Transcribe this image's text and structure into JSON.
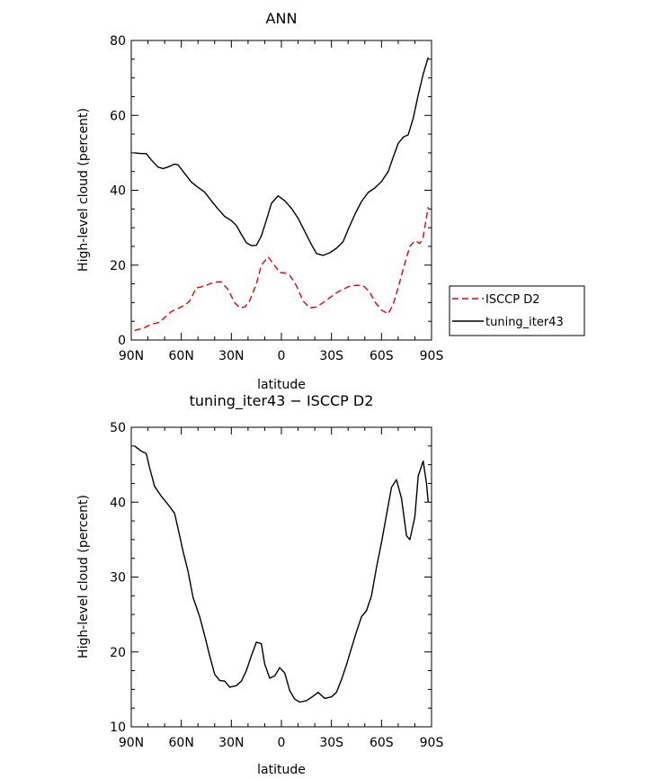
{
  "colors": {
    "isccp": "#e8000b",
    "model": "#000000",
    "axes": "#000000"
  },
  "chart_data": [
    {
      "type": "line",
      "title": "ANN",
      "xlabel": "latitude",
      "ylabel": "High-level cloud (percent)",
      "xlim": [
        90,
        -90
      ],
      "ylim": [
        0,
        80
      ],
      "x_ticks": [
        90,
        60,
        30,
        0,
        -30,
        -60,
        -90
      ],
      "x_tick_labels": [
        "90N",
        "60N",
        "30N",
        "0",
        "30S",
        "60S",
        "90S"
      ],
      "y_ticks": [
        0,
        20,
        40,
        60,
        80
      ],
      "y_tick_labels": [
        "0",
        "20",
        "40",
        "60",
        "80"
      ],
      "legend_position": "right-outside",
      "series": [
        {
          "name": "ISCCP D2",
          "style": "dashed",
          "color": "#e8000b",
          "x": [
            88,
            82,
            78,
            73,
            70,
            66,
            62,
            58,
            55,
            51,
            48,
            44,
            40,
            36,
            32,
            28,
            25,
            22,
            19,
            15,
            12,
            8,
            5,
            1,
            -2,
            -5,
            -9,
            -13,
            -17,
            -21,
            -25,
            -29,
            -33,
            -37,
            -41,
            -45,
            -49,
            -53,
            -56,
            -60,
            -64,
            -67,
            -70,
            -74,
            -77,
            -80,
            -83,
            -85,
            -88
          ],
          "y": [
            2.5,
            3.3,
            4.2,
            4.7,
            6,
            7.6,
            8.4,
            9.3,
            10.4,
            13.9,
            14.2,
            14.8,
            15.5,
            15.5,
            13.5,
            10,
            8.6,
            8.8,
            10.5,
            15,
            20,
            22.2,
            20.5,
            18,
            17.9,
            17.3,
            14.5,
            10.4,
            8.6,
            8.8,
            10,
            11.3,
            12.6,
            13.6,
            14.4,
            14.6,
            14.5,
            12.8,
            10.2,
            8,
            7,
            9.5,
            14,
            20.5,
            25,
            26.5,
            25.8,
            27.5,
            35.5
          ]
        },
        {
          "name": "tuning_iter43",
          "style": "solid",
          "color": "#000000",
          "x": [
            88,
            84,
            81,
            78,
            74,
            71,
            68,
            64,
            62,
            58,
            54,
            50,
            46,
            42,
            38,
            34,
            30,
            27,
            24,
            21,
            18,
            15,
            12,
            9,
            6,
            2,
            -2,
            -6,
            -10,
            -14,
            -18,
            -21,
            -25,
            -29,
            -33,
            -37,
            -40,
            -44,
            -48,
            -52,
            -56,
            -60,
            -64,
            -67,
            -70,
            -73,
            -76,
            -79,
            -82,
            -85,
            -88
          ],
          "y": [
            50,
            49.8,
            49.8,
            48.1,
            46.2,
            45.8,
            46.2,
            47,
            46.8,
            44.5,
            42.2,
            40.8,
            39.5,
            37.2,
            35,
            33,
            31.9,
            30.6,
            28.2,
            26,
            25.2,
            25.3,
            27.8,
            32,
            36.5,
            38.5,
            37.2,
            35.2,
            32.5,
            29,
            25.5,
            23.1,
            22.6,
            23.3,
            24.5,
            26.3,
            29.5,
            33.5,
            37,
            39.4,
            40.6,
            42.3,
            45,
            48.8,
            52.5,
            54.2,
            54.8,
            59.2,
            65.5,
            71,
            75.5
          ]
        }
      ]
    },
    {
      "type": "line",
      "title": "tuning_iter43 − ISCCP D2",
      "xlabel": "latitude",
      "ylabel": "High-level cloud (percent)",
      "xlim": [
        90,
        -90
      ],
      "ylim": [
        10,
        50
      ],
      "x_ticks": [
        90,
        60,
        30,
        0,
        -30,
        -60,
        -90
      ],
      "x_tick_labels": [
        "90N",
        "60N",
        "30N",
        "0",
        "30S",
        "60S",
        "90S"
      ],
      "y_ticks": [
        10,
        20,
        30,
        40,
        50
      ],
      "y_tick_labels": [
        "10",
        "20",
        "30",
        "40",
        "50"
      ],
      "series": [
        {
          "style": "solid",
          "color": "#000000",
          "x": [
            88,
            84,
            81,
            79,
            76,
            72,
            68,
            64,
            62,
            59,
            56,
            53,
            49,
            46,
            43,
            40,
            37,
            34,
            31,
            27,
            24,
            21,
            18,
            15,
            12,
            10,
            7,
            4,
            1,
            -2,
            -5,
            -8,
            -11,
            -15,
            -19,
            -22,
            -26,
            -30,
            -33,
            -36,
            -39,
            -42,
            -45,
            -48,
            -51,
            -54,
            -57,
            -60,
            -63,
            -66,
            -69,
            -72,
            -75,
            -77,
            -80,
            -82,
            -85,
            -87,
            -88
          ],
          "y": [
            47.5,
            46.8,
            46.5,
            44.6,
            42.1,
            40.8,
            39.7,
            38.5,
            36.5,
            33.5,
            30.8,
            27.3,
            24.7,
            22.2,
            19.5,
            17,
            16.2,
            16.1,
            15.3,
            15.5,
            16.1,
            17.5,
            19.5,
            21.3,
            21.1,
            18.4,
            16.5,
            16.8,
            17.9,
            17.2,
            14.8,
            13.7,
            13.3,
            13.5,
            14.1,
            14.6,
            13.8,
            14,
            14.6,
            16.3,
            18.3,
            20.5,
            22.7,
            24.7,
            25.5,
            27.5,
            31.3,
            34.6,
            38.3,
            42,
            43,
            40.5,
            35.5,
            35,
            38,
            43.5,
            45.5,
            42.5,
            40
          ]
        }
      ]
    }
  ]
}
